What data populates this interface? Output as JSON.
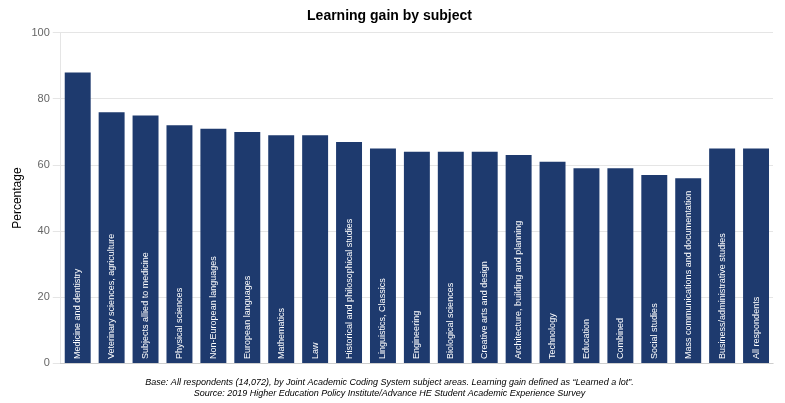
{
  "chart_data": {
    "type": "bar",
    "title": "Learning gain by subject",
    "ylabel": "Percentage",
    "categories": [
      "Medicine and dentistry",
      "Veterinary sciences, agriculture",
      "Subjects allied to medicine",
      "Physical sciences",
      "Non-European languages",
      "European languages",
      "Mathematics",
      "Law",
      "Historical and philosophical studies",
      "Linguistics, Classics",
      "Engineering",
      "Biological sciences",
      "Creative arts and design",
      "Architecture, building and planning",
      "Technology",
      "Education",
      "Combined",
      "Social studies",
      "Mass communications and documentation",
      "Business/administrative studies",
      "All respondents"
    ],
    "values": [
      88,
      76,
      75,
      72,
      71,
      70,
      69,
      69,
      67,
      65,
      64,
      64,
      64,
      63,
      61,
      59,
      59,
      57,
      56,
      65,
      65
    ],
    "color": "#1e3a6e",
    "ylim": [
      0,
      100
    ],
    "yticks": [
      0,
      20,
      40,
      60,
      80,
      100
    ],
    "grid": true,
    "tick_labels": "y",
    "annotations": [
      "Base: All respondents (14,072), by Joint Academic Coding System subject areas. Learning gain defined as “Learned a lot”.",
      "Source: 2019 Higher Education Policy Institute/Advance HE Student Academic Experience Survey"
    ]
  }
}
